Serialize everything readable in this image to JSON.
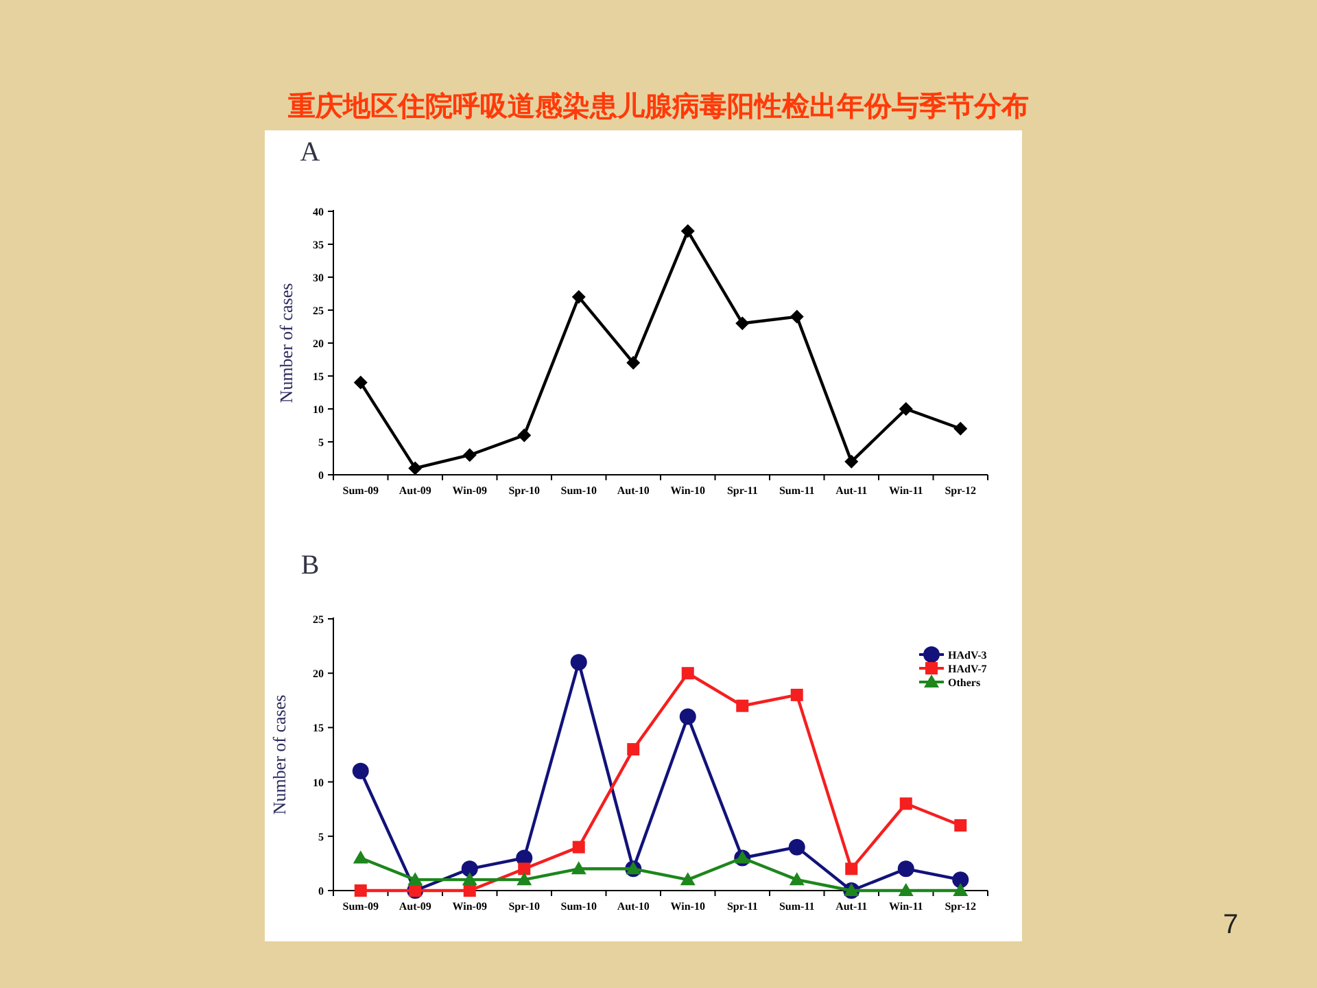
{
  "chart_data": [
    {
      "type": "line",
      "title": "重庆地区住院呼吸道感染患儿腺病毒阳性检出年份与季节分布",
      "subtitle": "A",
      "ylabel": "Number of cases",
      "categories": [
        "Sum-09",
        "Aut-09",
        "Win-09",
        "Spr-10",
        "Sum-10",
        "Aut-10",
        "Win-10",
        "Spr-11",
        "Sum-11",
        "Aut-11",
        "Win-11",
        "Spr-12"
      ],
      "series": [
        {
          "color": "#000000",
          "marker": "diamond",
          "values": [
            14,
            1,
            3,
            6,
            27,
            17,
            37,
            23,
            24,
            2,
            10,
            7
          ]
        }
      ],
      "ylim": [
        0,
        40
      ],
      "yticks": [
        0,
        5,
        10,
        15,
        20,
        25,
        30,
        35,
        40
      ],
      "line_style": "solid"
    },
    {
      "type": "line",
      "title": "B",
      "ylabel": "Number of cases",
      "categories": [
        "Sum-09",
        "Aut-09",
        "Win-09",
        "Spr-10",
        "Sum-10",
        "Aut-10",
        "Win-10",
        "Spr-11",
        "Sum-11",
        "Aut-11",
        "Win-11",
        "Spr-12"
      ],
      "series": [
        {
          "name": "HAdV-3",
          "color": "#12127a",
          "marker": "circle",
          "values": [
            11,
            0,
            2,
            3,
            21,
            2,
            16,
            3,
            4,
            0,
            2,
            1
          ]
        },
        {
          "name": "HAdV-7",
          "color": "#f51f1f",
          "marker": "square",
          "values": [
            0,
            0,
            0,
            2,
            4,
            13,
            20,
            17,
            18,
            2,
            8,
            6
          ]
        },
        {
          "name": "Others",
          "color": "#1d861d",
          "marker": "triangle",
          "values": [
            3,
            1,
            1,
            1,
            2,
            2,
            1,
            3,
            1,
            0,
            0,
            0
          ]
        }
      ],
      "ylim": [
        0,
        25
      ],
      "yticks": [
        0,
        5,
        10,
        15,
        20,
        25
      ],
      "line_style": "solid",
      "legend": "top right",
      "annotations": [
        "7"
      ]
    }
  ]
}
